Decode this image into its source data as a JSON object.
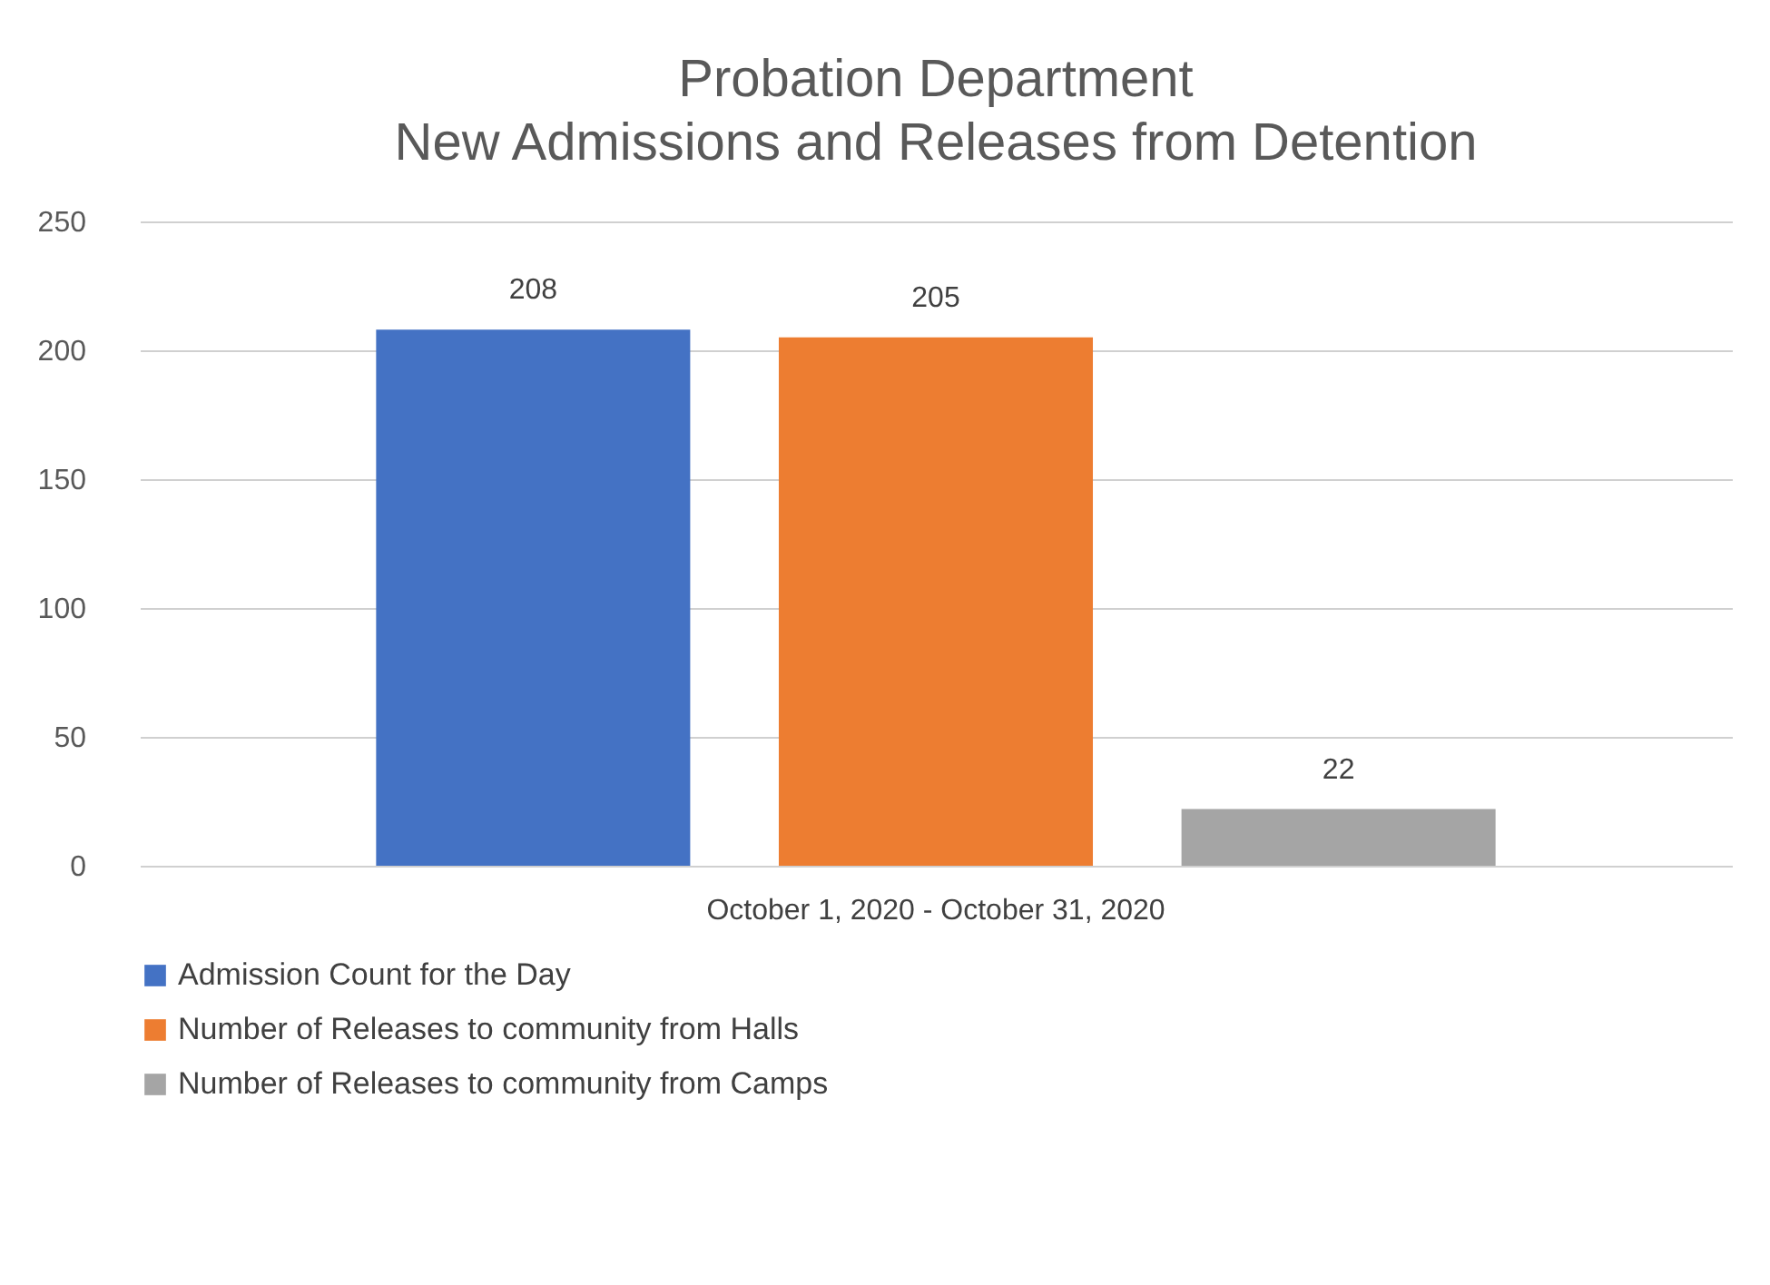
{
  "chart_data": {
    "type": "bar",
    "title": "Probation Department",
    "subtitle": "New Admissions and Releases from Detention",
    "categories": [
      "October 1, 2020 - October 31, 2020"
    ],
    "series": [
      {
        "name": "Admission Count for the Day",
        "color": "#4472c4",
        "values": [
          208
        ]
      },
      {
        "name": "Number of Releases to community from Halls",
        "color": "#ed7d31",
        "values": [
          205
        ]
      },
      {
        "name": "Number of Releases to community from Camps",
        "color": "#a5a5a5",
        "values": [
          22
        ]
      }
    ],
    "ylim": [
      0,
      250
    ],
    "yticks": [
      0,
      50,
      100,
      150,
      200,
      250
    ],
    "grid": "y",
    "legend": "bottom",
    "data_labels": true
  }
}
